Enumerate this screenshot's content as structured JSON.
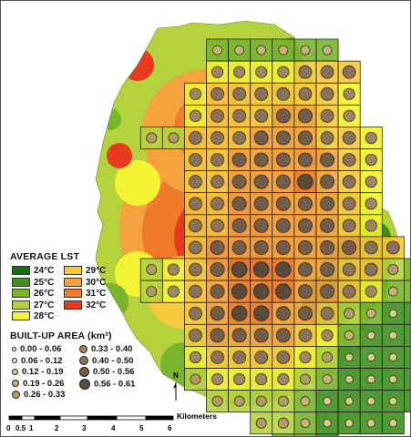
{
  "legend": {
    "lst_title": "AVERAGE LST",
    "lst_classes": [
      {
        "label": "24°C",
        "color": "#1a6b1a"
      },
      {
        "label": "25°C",
        "color": "#3f8f1f"
      },
      {
        "label": "26°C",
        "color": "#78b42a"
      },
      {
        "label": "27°C",
        "color": "#b4d23c"
      },
      {
        "label": "28°C",
        "color": "#f2f230"
      },
      {
        "label": "29°C",
        "color": "#f6c83a"
      },
      {
        "label": "30°C",
        "color": "#f3a23e"
      },
      {
        "label": "31°C",
        "color": "#ef7b2a"
      },
      {
        "label": "32°C",
        "color": "#e9391f"
      }
    ],
    "builtup_title": "BUILT-UP AREA (km²)",
    "builtup_classes": [
      {
        "label": "0.00 - 0.06",
        "color": "#f3efb8"
      },
      {
        "label": "0.06 - 0.12",
        "color": "#e9e1a6"
      },
      {
        "label": "0.12 - 0.19",
        "color": "#d9ca86"
      },
      {
        "label": "0.19 - 0.26",
        "color": "#c9b073"
      },
      {
        "label": "0.26 - 0.33",
        "color": "#b29a67"
      },
      {
        "label": "0.33 - 0.40",
        "color": "#a08660"
      },
      {
        "label": "0.40 - 0.50",
        "color": "#8a7157"
      },
      {
        "label": "0.50 - 0.56",
        "color": "#735c48"
      },
      {
        "label": "0.56 - 0.61",
        "color": "#5c4a3a"
      }
    ]
  },
  "north_label": "N",
  "scale": {
    "ticks": [
      "0",
      "0.5",
      "1",
      "2",
      "3",
      "4",
      "5",
      "6"
    ],
    "unit": "Kilometers"
  },
  "grid_values": {
    "rows": [
      [
        null,
        null,
        null,
        null,
        null,
        3,
        3,
        3,
        3,
        3,
        3,
        null,
        null,
        null,
        null,
        null,
        null
      ],
      [
        null,
        null,
        null,
        null,
        null,
        5,
        5,
        5,
        5,
        6,
        6,
        6,
        null,
        null,
        null,
        null,
        null
      ],
      [
        null,
        null,
        null,
        null,
        5,
        6,
        6,
        6,
        6,
        6,
        6,
        5,
        null,
        null,
        null,
        null,
        null
      ],
      [
        null,
        null,
        null,
        null,
        5,
        6,
        6,
        6,
        7,
        7,
        6,
        5,
        null,
        null,
        null,
        null,
        null
      ],
      [
        null,
        null,
        4,
        4,
        6,
        6,
        6,
        7,
        7,
        7,
        6,
        6,
        5,
        null,
        null,
        null,
        null
      ],
      [
        null,
        null,
        null,
        null,
        6,
        6,
        7,
        7,
        7,
        7,
        7,
        6,
        5,
        null,
        null,
        null,
        null
      ],
      [
        null,
        null,
        null,
        null,
        6,
        6,
        7,
        7,
        7,
        8,
        7,
        6,
        5,
        null,
        null,
        null,
        null
      ],
      [
        null,
        null,
        null,
        null,
        6,
        6,
        7,
        7,
        7,
        7,
        7,
        6,
        5,
        null,
        null,
        null,
        null
      ],
      [
        null,
        null,
        null,
        null,
        6,
        6,
        7,
        7,
        7,
        7,
        7,
        6,
        5,
        null,
        null,
        null,
        null
      ],
      [
        null,
        null,
        null,
        null,
        6,
        7,
        7,
        7,
        7,
        7,
        7,
        7,
        6,
        6,
        null,
        null,
        null
      ],
      [
        null,
        null,
        4,
        5,
        6,
        7,
        8,
        8,
        8,
        7,
        7,
        6,
        6,
        4,
        3,
        3,
        3
      ],
      [
        null,
        null,
        4,
        5,
        6,
        7,
        8,
        8,
        8,
        7,
        7,
        6,
        5,
        3,
        3,
        3,
        3
      ],
      [
        null,
        null,
        null,
        null,
        6,
        7,
        8,
        8,
        7,
        7,
        6,
        4,
        3,
        2,
        2,
        2,
        1
      ],
      [
        null,
        null,
        null,
        null,
        6,
        7,
        7,
        7,
        7,
        6,
        5,
        3,
        2,
        2,
        2,
        1,
        1
      ],
      [
        null,
        null,
        null,
        null,
        5,
        6,
        6,
        6,
        6,
        5,
        4,
        2,
        2,
        2,
        2,
        2,
        1
      ],
      [
        null,
        null,
        null,
        null,
        4,
        5,
        5,
        5,
        5,
        4,
        3,
        2,
        2,
        2,
        2,
        2,
        null
      ],
      [
        null,
        null,
        null,
        null,
        null,
        4,
        4,
        4,
        4,
        3,
        2,
        2,
        2,
        2,
        2,
        null,
        null
      ],
      [
        null,
        null,
        null,
        null,
        null,
        null,
        null,
        4,
        4,
        3,
        2,
        2,
        2,
        2,
        null,
        null,
        null
      ],
      [
        null,
        null,
        null,
        null,
        null,
        null,
        null,
        null,
        3,
        3,
        2,
        null,
        null,
        null,
        null,
        null,
        null
      ]
    ]
  }
}
